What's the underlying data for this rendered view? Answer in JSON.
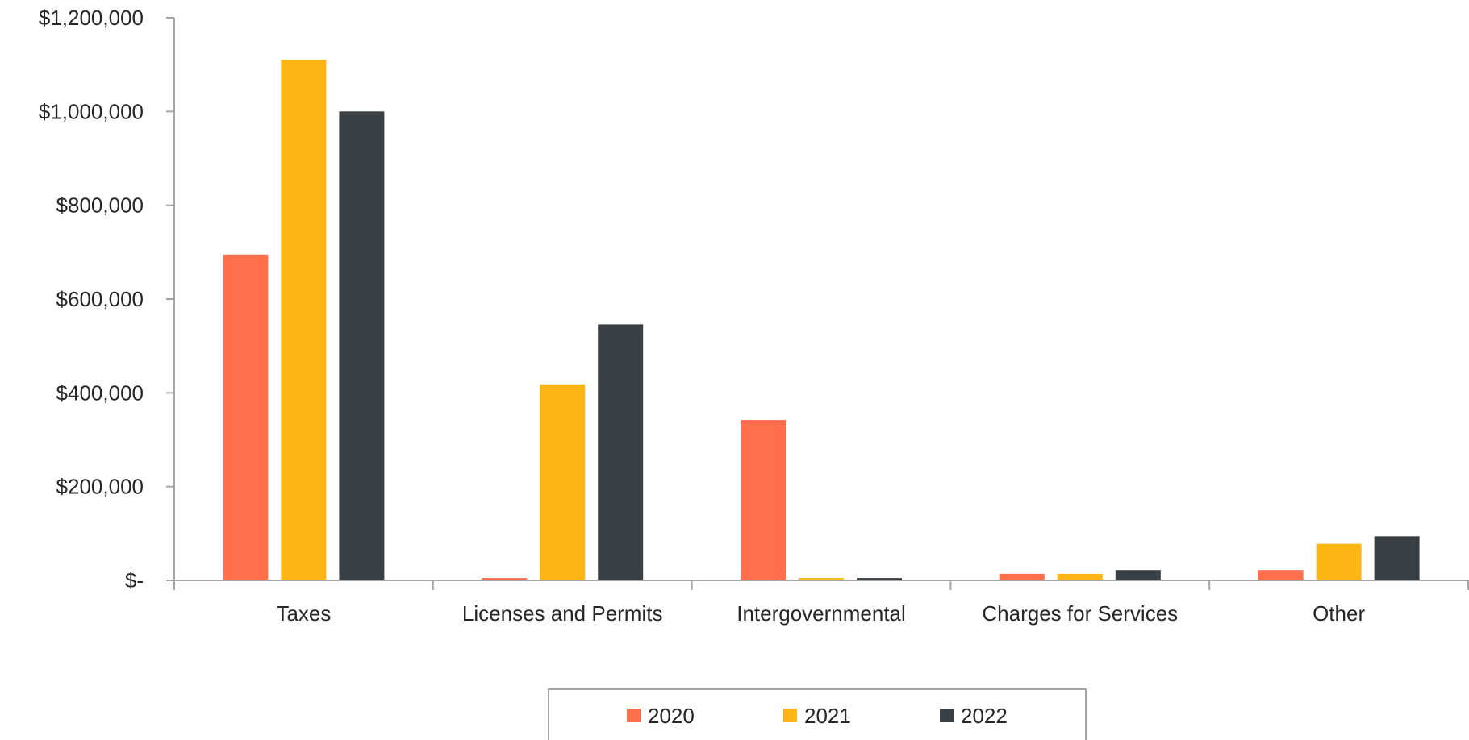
{
  "chart_data": {
    "type": "bar",
    "title": "",
    "xlabel": "",
    "ylabel": "",
    "categories": [
      "Taxes",
      "Licenses and Permits",
      "Intergovernmental",
      "Charges for Services",
      "Other"
    ],
    "series": [
      {
        "name": "2020",
        "color": "#ff6f4b",
        "values": [
          695000,
          5000,
          342000,
          14000,
          22000
        ]
      },
      {
        "name": "2021",
        "color": "#fdb515",
        "values": [
          1110000,
          418000,
          5000,
          14000,
          78000
        ]
      },
      {
        "name": "2022",
        "color": "#3a3f44",
        "values": [
          1000000,
          546000,
          5000,
          22000,
          94000
        ]
      }
    ],
    "ylim": [
      0,
      1200000
    ],
    "yticks": [
      0,
      200000,
      400000,
      600000,
      800000,
      1000000,
      1200000
    ],
    "ytick_labels": [
      "$-",
      "$200,000",
      "$400,000",
      "$600,000",
      "$800,000",
      "$1,000,000",
      "$1,200,000"
    ],
    "grid": false,
    "legend_position": "bottom"
  }
}
